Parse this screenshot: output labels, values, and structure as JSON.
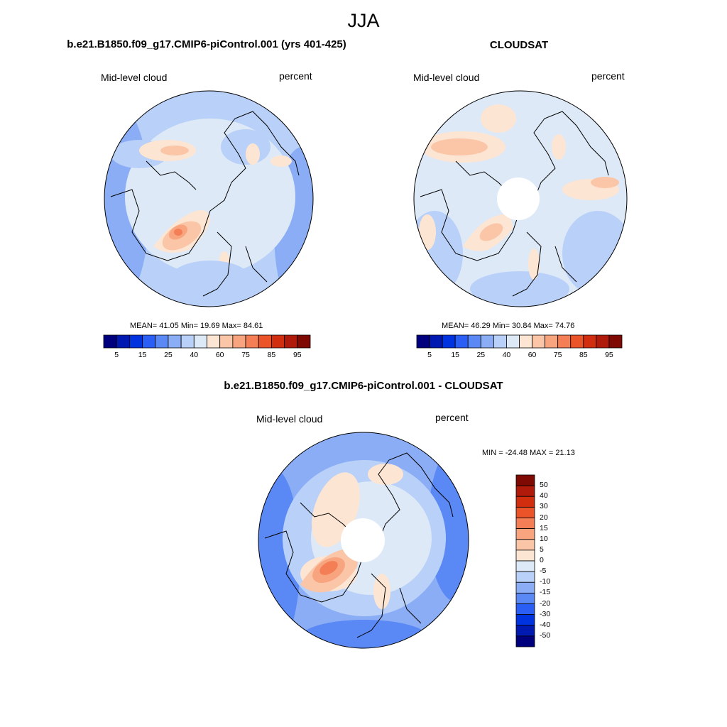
{
  "figure": {
    "title": "JJA"
  },
  "panels": [
    {
      "id": "model",
      "title": "b.e21.B1850.f09_g17.CMIP6-piControl.001 (yrs 401-425)",
      "left_label": "Mid-level cloud",
      "right_label": "percent",
      "stats": "MEAN=  41.05  Min=  19.69  Max=  84.61",
      "polar_hole": false
    },
    {
      "id": "obs",
      "title": "CLOUDSAT",
      "left_label": "Mid-level cloud",
      "right_label": "percent",
      "stats": "MEAN=  46.29  Min=  30.84  Max=  74.76",
      "polar_hole": true
    },
    {
      "id": "diff",
      "title": "b.e21.B1850.f09_g17.CMIP6-piControl.001 - CLOUDSAT",
      "left_label": "Mid-level cloud",
      "right_label": "percent",
      "stats": "MIN = -24.48 MAX =  21.13",
      "polar_hole": true
    }
  ],
  "colorbar_abs": {
    "colors": [
      "#00007f",
      "#0019b0",
      "#0033e0",
      "#2a5ef5",
      "#5a88f5",
      "#8aadf5",
      "#b9d0f8",
      "#dde9f7",
      "#fde5d3",
      "#fbc6a8",
      "#f8a47f",
      "#f47e55",
      "#ea5428",
      "#d12e10",
      "#b01a0a",
      "#7f0a04"
    ],
    "tick_labels": [
      "5",
      "15",
      "25",
      "40",
      "60",
      "75",
      "85",
      "95"
    ]
  },
  "colorbar_diff": {
    "colors_top_to_bottom": [
      "#7f0a04",
      "#b01a0a",
      "#d12e10",
      "#ea5428",
      "#f47e55",
      "#f8a47f",
      "#fbc6a8",
      "#fde5d3",
      "#dde9f7",
      "#b9d0f8",
      "#8aadf5",
      "#5a88f5",
      "#2a5ef5",
      "#0033e0",
      "#0019b0",
      "#00007f"
    ],
    "tick_labels_top_to_bottom": [
      "50",
      "40",
      "30",
      "20",
      "15",
      "10",
      "5",
      "0",
      "-5",
      "-10",
      "-15",
      "-20",
      "-30",
      "-40",
      "-50"
    ]
  }
}
